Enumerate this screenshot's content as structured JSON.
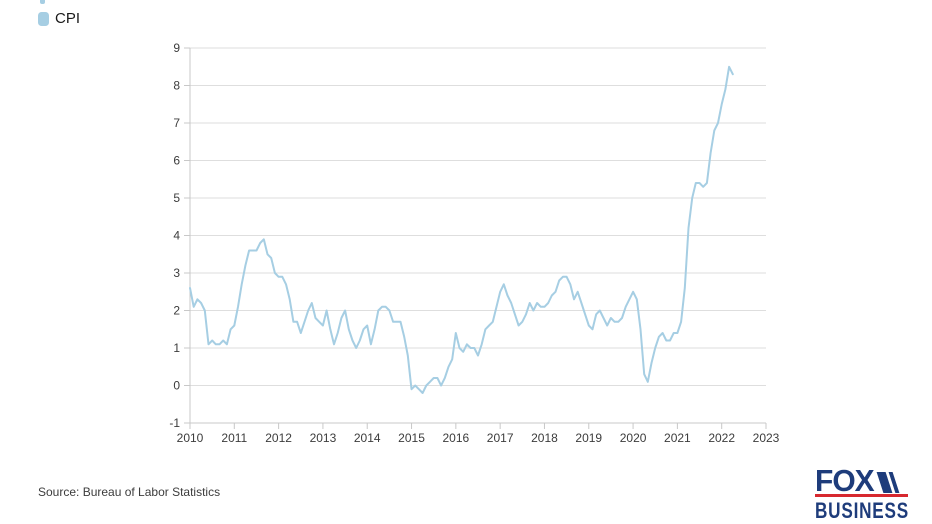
{
  "legend": {
    "label": "CPI"
  },
  "footer": {
    "source": "Source: Bureau of Labor Statistics"
  },
  "logo": {
    "line1": "FOX",
    "line2": "BUSINESS"
  },
  "colors": {
    "line": "#a6cee3",
    "gridline": "#dedede",
    "axis": "#c8c8c8",
    "tick_text": "#3c3c3c",
    "logo_navy": "#1e3c7b",
    "logo_red": "#d7282f"
  },
  "chart_data": {
    "type": "line",
    "title": "",
    "xlabel": "",
    "ylabel": "",
    "grid": true,
    "legend_position": "top-left",
    "xlim": [
      2010,
      2023
    ],
    "ylim": [
      -1,
      9
    ],
    "x_ticks": [
      2010,
      2011,
      2012,
      2013,
      2014,
      2015,
      2016,
      2017,
      2018,
      2019,
      2020,
      2021,
      2022,
      2023
    ],
    "y_ticks": [
      -1,
      0,
      1,
      2,
      3,
      4,
      5,
      6,
      7,
      8,
      9
    ],
    "series": [
      {
        "name": "CPI",
        "color": "#a6cee3",
        "start": "2010-01",
        "interval": "monthly",
        "values": [
          2.6,
          2.1,
          2.3,
          2.2,
          2.0,
          1.1,
          1.2,
          1.1,
          1.1,
          1.2,
          1.1,
          1.5,
          1.6,
          2.1,
          2.7,
          3.2,
          3.6,
          3.6,
          3.6,
          3.8,
          3.9,
          3.5,
          3.4,
          3.0,
          2.9,
          2.9,
          2.7,
          2.3,
          1.7,
          1.7,
          1.4,
          1.7,
          2.0,
          2.2,
          1.8,
          1.7,
          1.6,
          2.0,
          1.5,
          1.1,
          1.4,
          1.8,
          2.0,
          1.5,
          1.2,
          1.0,
          1.2,
          1.5,
          1.6,
          1.1,
          1.5,
          2.0,
          2.1,
          2.1,
          2.0,
          1.7,
          1.7,
          1.7,
          1.3,
          0.8,
          -0.1,
          0.0,
          -0.1,
          -0.2,
          0.0,
          0.1,
          0.2,
          0.2,
          0.0,
          0.2,
          0.5,
          0.7,
          1.4,
          1.0,
          0.9,
          1.1,
          1.0,
          1.0,
          0.8,
          1.1,
          1.5,
          1.6,
          1.7,
          2.1,
          2.5,
          2.7,
          2.4,
          2.2,
          1.9,
          1.6,
          1.7,
          1.9,
          2.2,
          2.0,
          2.2,
          2.1,
          2.1,
          2.2,
          2.4,
          2.5,
          2.8,
          2.9,
          2.9,
          2.7,
          2.3,
          2.5,
          2.2,
          1.9,
          1.6,
          1.5,
          1.9,
          2.0,
          1.8,
          1.6,
          1.8,
          1.7,
          1.7,
          1.8,
          2.1,
          2.3,
          2.5,
          2.3,
          1.5,
          0.3,
          0.1,
          0.6,
          1.0,
          1.3,
          1.4,
          1.2,
          1.2,
          1.4,
          1.4,
          1.7,
          2.6,
          4.2,
          5.0,
          5.4,
          5.4,
          5.3,
          5.4,
          6.2,
          6.8,
          7.0,
          7.5,
          7.9,
          8.5,
          8.3
        ]
      }
    ]
  }
}
